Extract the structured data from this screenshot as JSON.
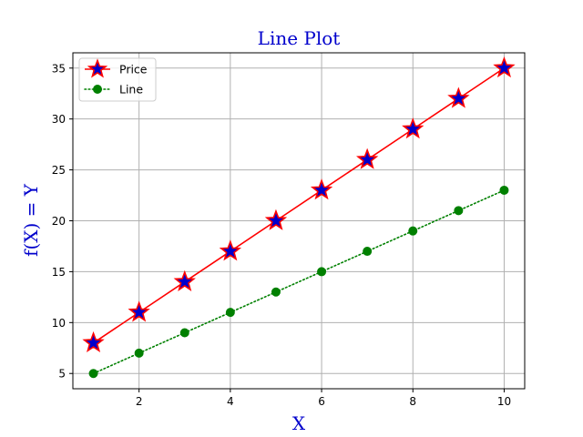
{
  "chart_data": {
    "type": "line",
    "title": "Line Plot",
    "xlabel": "X",
    "ylabel": "f(X) = Y",
    "x": [
      1,
      2,
      3,
      4,
      5,
      6,
      7,
      8,
      9,
      10
    ],
    "xlim": [
      0.55,
      10.45
    ],
    "ylim": [
      3.5,
      36.5
    ],
    "xticks": [
      2,
      4,
      6,
      8,
      10
    ],
    "yticks": [
      5,
      10,
      15,
      20,
      25,
      30,
      35
    ],
    "grid": true,
    "legend_position": "top-left",
    "series": [
      {
        "name": "Price",
        "values": [
          8,
          11,
          14,
          17,
          20,
          23,
          26,
          29,
          32,
          35
        ],
        "line_color": "#ff0000",
        "line_style": "solid",
        "marker": "star",
        "marker_face": "#0000cc",
        "marker_edge": "#ff0000"
      },
      {
        "name": "Line",
        "values": [
          5,
          7,
          9,
          11,
          13,
          15,
          17,
          19,
          21,
          23
        ],
        "line_color": "#008000",
        "line_style": "dotted",
        "marker": "circle",
        "marker_face": "#008000",
        "marker_edge": "#008000"
      }
    ]
  }
}
